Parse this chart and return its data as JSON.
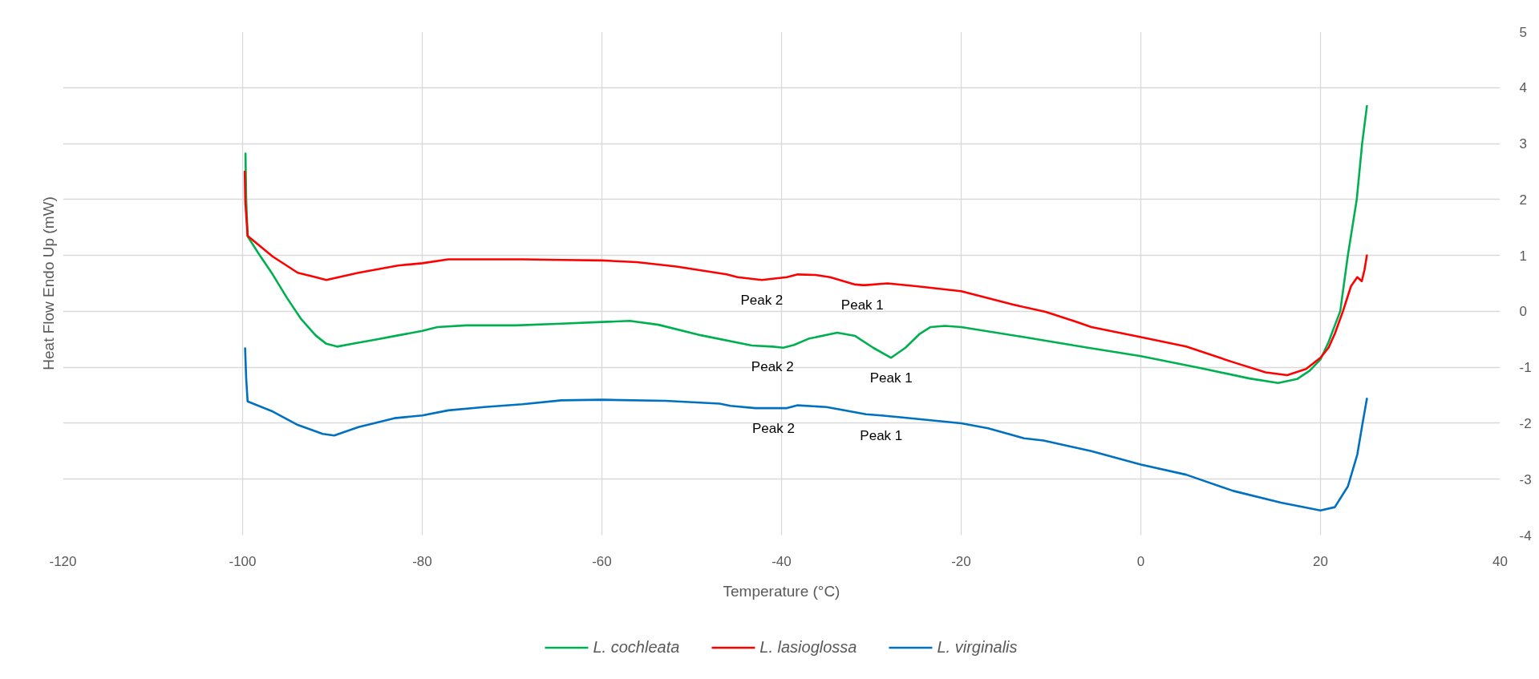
{
  "chart_data": {
    "type": "line",
    "xlabel": "Temperature (°C)",
    "ylabel": "Heat Flow Endo Up (mW)",
    "xlim": [
      -120,
      40
    ],
    "ylim": [
      -4,
      5
    ],
    "xticks": [
      -120,
      -100,
      -80,
      -60,
      -40,
      -20,
      0,
      20,
      40
    ],
    "yticks": [
      -4,
      -3,
      -2,
      -1,
      0,
      1,
      2,
      3,
      4,
      5
    ],
    "grid": true,
    "legend": "bottom",
    "line_style": "solid",
    "series": [
      {
        "name": "L. cochleata",
        "color": "#00b050",
        "x": [
          -99.68,
          -99.6,
          -99.44,
          -98.25,
          -96.65,
          -95.06,
          -93.47,
          -91.87,
          -90.68,
          -89.48,
          -87.5,
          -85.0,
          -82.7,
          -80.0,
          -78.3,
          -75.1,
          -69.6,
          -64.5,
          -60.0,
          -56.9,
          -53.7,
          -48.9,
          -43.3,
          -41.0,
          -39.8,
          -38.6,
          -37.0,
          -33.8,
          -31.8,
          -29.8,
          -27.8,
          -26.2,
          -24.6,
          -23.4,
          -21.8,
          -20.0,
          -13.0,
          -6.3,
          0.0,
          6.8,
          12.1,
          15.3,
          17.4,
          18.8,
          20.0,
          20.9,
          21.6,
          22.2,
          23.05,
          24.04,
          24.64,
          25.17
        ],
        "values": [
          2.82,
          2.0,
          1.34,
          1.04,
          0.66,
          0.24,
          -0.14,
          -0.43,
          -0.58,
          -0.63,
          -0.57,
          -0.5,
          -0.43,
          -0.35,
          -0.28,
          -0.25,
          -0.25,
          -0.22,
          -0.19,
          -0.17,
          -0.24,
          -0.43,
          -0.61,
          -0.63,
          -0.65,
          -0.6,
          -0.49,
          -0.38,
          -0.44,
          -0.65,
          -0.83,
          -0.65,
          -0.4,
          -0.28,
          -0.26,
          -0.28,
          -0.46,
          -0.64,
          -0.8,
          -1.02,
          -1.2,
          -1.28,
          -1.21,
          -1.06,
          -0.86,
          -0.55,
          -0.25,
          0.0,
          1.0,
          2.0,
          3.0,
          3.67
        ]
      },
      {
        "name": "L. lasioglossa",
        "color": "#ff0000",
        "x": [
          -99.76,
          -99.7,
          -99.44,
          -96.65,
          -93.86,
          -91.87,
          -90.68,
          -87.1,
          -82.7,
          -80.0,
          -77.1,
          -73.1,
          -68.85,
          -64.5,
          -60.0,
          -56.1,
          -51.7,
          -46.1,
          -44.9,
          -42.2,
          -39.4,
          -38.2,
          -36.2,
          -34.6,
          -31.8,
          -31.0,
          -30.6,
          -28.2,
          -25.0,
          -20.0,
          -14.2,
          -10.6,
          -7.3,
          -5.5,
          0.0,
          5.05,
          10.3,
          13.9,
          16.3,
          18.4,
          20.0,
          20.9,
          21.6,
          22.5,
          23.4,
          24.1,
          24.6,
          24.9,
          25.17
        ],
        "values": [
          2.5,
          1.97,
          1.35,
          0.98,
          0.69,
          0.61,
          0.56,
          0.69,
          0.82,
          0.86,
          0.93,
          0.93,
          0.93,
          0.92,
          0.91,
          0.88,
          0.8,
          0.66,
          0.61,
          0.56,
          0.61,
          0.66,
          0.65,
          0.61,
          0.48,
          0.47,
          0.47,
          0.5,
          0.45,
          0.36,
          0.12,
          -0.01,
          -0.18,
          -0.28,
          -0.46,
          -0.63,
          -0.91,
          -1.09,
          -1.14,
          -1.03,
          -0.83,
          -0.65,
          -0.4,
          0.0,
          0.45,
          0.61,
          0.54,
          0.74,
          1.0
        ]
      },
      {
        "name": "L. virginalis",
        "color": "#0070c0",
        "x": [
          -99.72,
          -99.6,
          -99.44,
          -96.65,
          -93.86,
          -91.08,
          -89.8,
          -87.1,
          -83.1,
          -80.0,
          -77.1,
          -73.1,
          -68.85,
          -64.5,
          -60.0,
          -52.9,
          -46.9,
          -45.7,
          -42.9,
          -40.9,
          -39.4,
          -38.2,
          -35.0,
          -30.6,
          -28.9,
          -27.0,
          -20.0,
          -17.0,
          -13.0,
          -10.84,
          -5.5,
          0.0,
          5.05,
          10.3,
          15.6,
          20.0,
          21.6,
          23.05,
          24.1,
          24.7,
          25.17
        ],
        "values": [
          -0.66,
          -1.2,
          -1.61,
          -1.79,
          -2.03,
          -2.19,
          -2.22,
          -2.07,
          -1.91,
          -1.86,
          -1.77,
          -1.71,
          -1.66,
          -1.59,
          -1.58,
          -1.6,
          -1.65,
          -1.69,
          -1.73,
          -1.73,
          -1.73,
          -1.68,
          -1.71,
          -1.84,
          -1.86,
          -1.89,
          -2.0,
          -2.09,
          -2.27,
          -2.31,
          -2.5,
          -2.74,
          -2.92,
          -3.21,
          -3.42,
          -3.56,
          -3.5,
          -3.13,
          -2.56,
          -1.99,
          -1.56
        ]
      }
    ],
    "annotations": [
      {
        "text": "Peak 2",
        "x": -42.2,
        "y": 0.56
      },
      {
        "text": "Peak 1",
        "x": -31.0,
        "y": 0.47
      },
      {
        "text": "Peak 2",
        "x": -41.0,
        "y": -0.63
      },
      {
        "text": "Peak 1",
        "x": -27.8,
        "y": -0.83
      },
      {
        "text": "Peak 2",
        "x": -40.9,
        "y": -1.73
      },
      {
        "text": "Peak 1",
        "x": -28.9,
        "y": -1.86
      }
    ]
  }
}
